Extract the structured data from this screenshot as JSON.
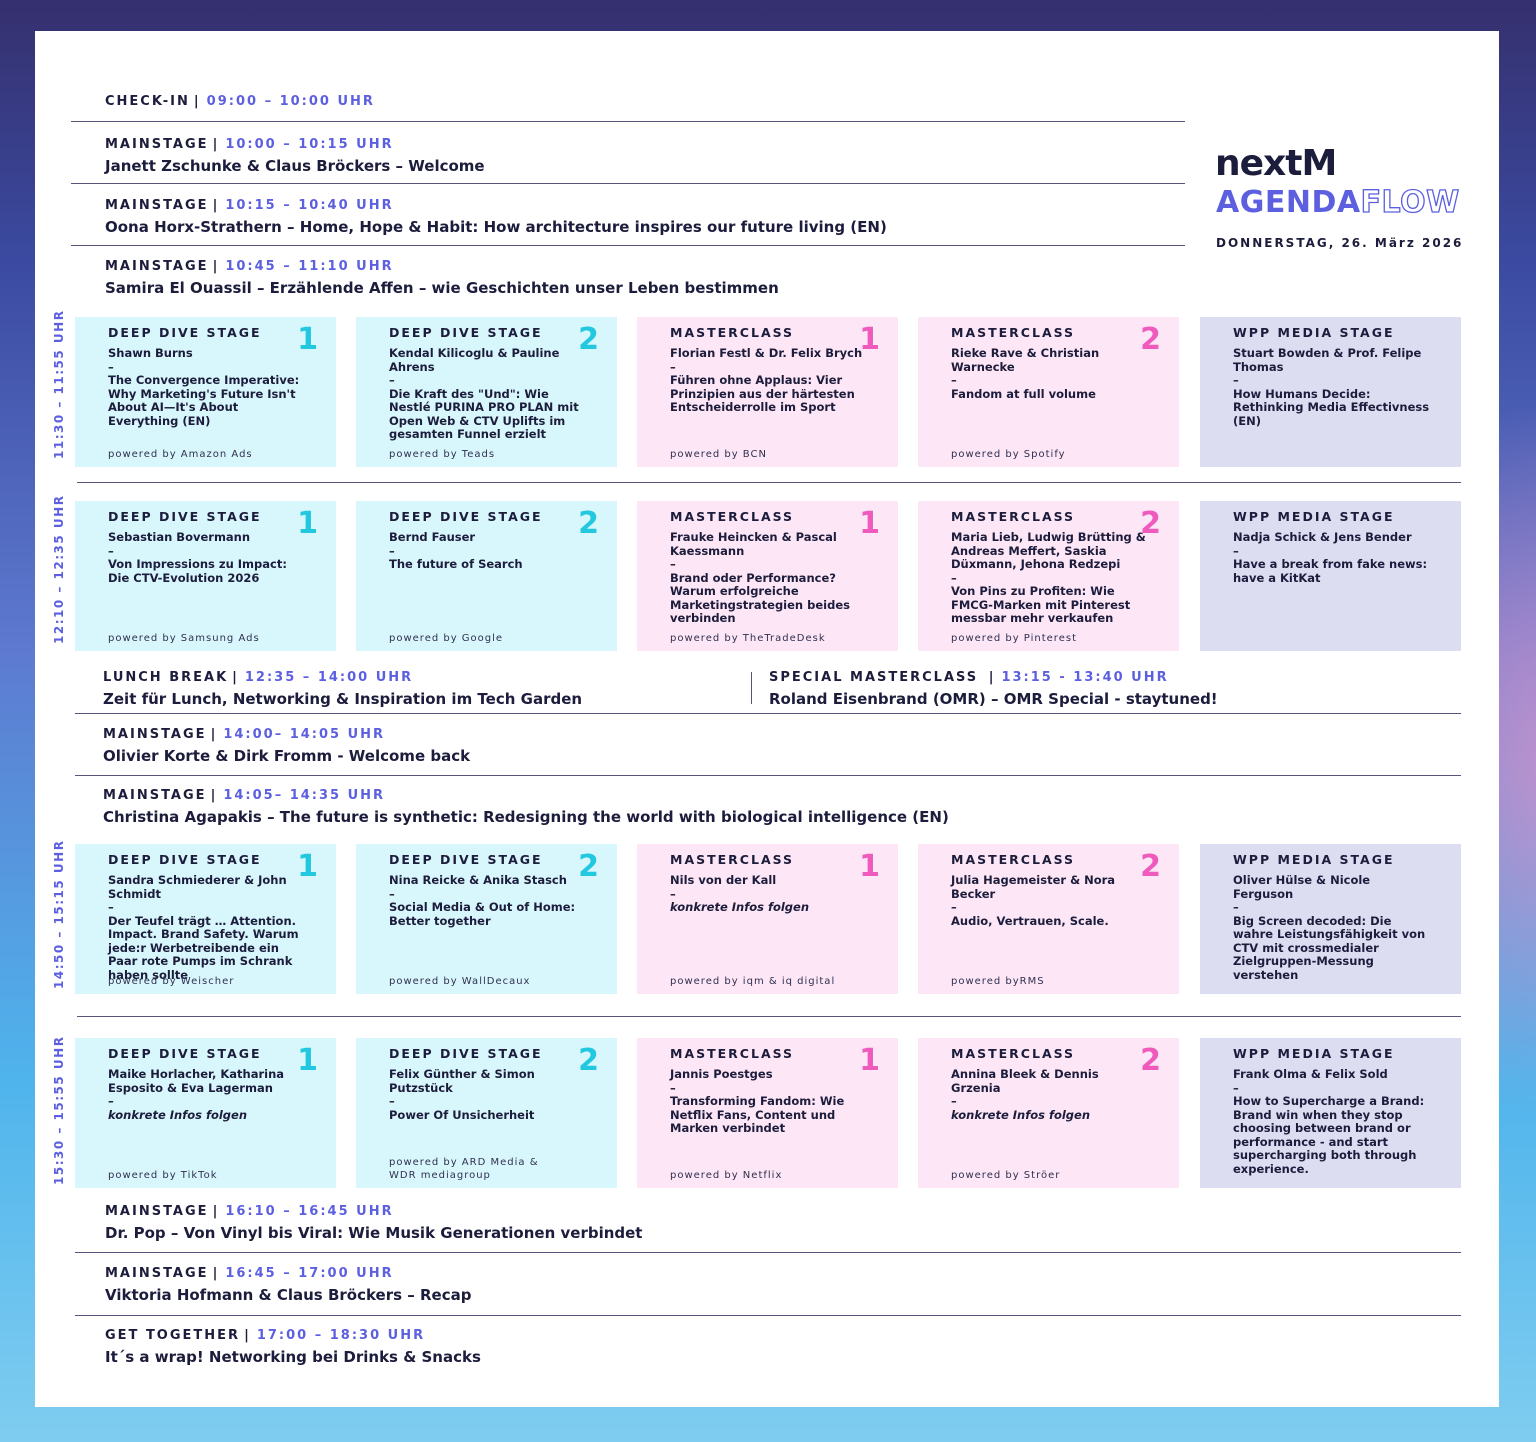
{
  "logo": {
    "brand": "nextM",
    "agenda": "AGENDA",
    "flow": "FLOW",
    "date": "DONNERSTAG, 26. März 2026"
  },
  "rows": [
    {
      "title": "CHECK-IN",
      "time": "09:00 – 10:00 UHR",
      "desc": ""
    },
    {
      "title": "MAINSTAGE",
      "time": "10:00 – 10:15 UHR",
      "desc": "Janett Zschunke & Claus Bröckers – Welcome"
    },
    {
      "title": "MAINSTAGE",
      "time": "10:15 – 10:40 UHR",
      "desc": "Oona Horx-Strathern – Home, Hope & Habit: How architecture inspires our future living (EN)"
    },
    {
      "title": "MAINSTAGE",
      "time": "10:45 – 11:10 UHR",
      "desc": "Samira El Ouassil – Erzählende Affen – wie Geschichten unser Leben bestimmen"
    },
    {
      "title": "LUNCH BREAK",
      "time": "12:35 – 14:00 UHR",
      "desc": "Zeit für Lunch, Networking & Inspiration im Tech Garden"
    },
    {
      "title": "SPECIAL MASTERCLASS ",
      "time": "13:15 - 13:40 UHR",
      "desc": "Roland Eisenbrand (OMR) – OMR Special - staytuned!"
    },
    {
      "title": "MAINSTAGE",
      "time": "14:00– 14:05 UHR",
      "desc": "Olivier Korte & Dirk Fromm - Welcome back"
    },
    {
      "title": "MAINSTAGE",
      "time": "14:05– 14:35 UHR",
      "desc": "Christina Agapakis – The future is synthetic: Redesigning the world with biological intelligence (EN)"
    },
    {
      "title": "MAINSTAGE",
      "time": "16:10 – 16:45 UHR",
      "desc": "Dr. Pop – Von Vinyl bis Viral: Wie Musik Generationen verbindet"
    },
    {
      "title": "MAINSTAGE",
      "time": "16:45 – 17:00 UHR",
      "desc": "Viktoria Hofmann & Claus Bröckers – Recap"
    },
    {
      "title": "GET TOGETHER",
      "time": "17:00 – 18:30 UHR",
      "desc": "It´s a wrap! Networking bei Drinks & Snacks"
    }
  ],
  "blocks": [
    {
      "time": "11:30 – 11:55 UHR",
      "cards": [
        {
          "stage": "DEEP DIVE STAGE",
          "num": "1",
          "speakers": "Shawn Burns",
          "talk": "The Convergence Imperative: Why Marketing's Future Isn't About AI—It's About Everything (EN)",
          "powered": "powered by Amazon Ads",
          "tbd": false
        },
        {
          "stage": "DEEP DIVE STAGE",
          "num": "2",
          "speakers": "Kendal Kilicoglu & Pauline Ahrens",
          "talk": "Die Kraft des \"Und\": Wie Nestlé PURINA PRO PLAN mit Open Web & CTV Uplifts im gesamten Funnel erzielt",
          "powered": "powered by Teads",
          "tbd": false
        },
        {
          "stage": "MASTERCLASS",
          "num": "1",
          "speakers": "Florian Festl & Dr. Felix Brych",
          "talk": "Führen ohne Applaus: Vier Prinzipien aus der härtesten Entscheiderrolle im Sport",
          "powered": "powered by BCN",
          "tbd": false
        },
        {
          "stage": "MASTERCLASS",
          "num": "2",
          "speakers": "Rieke Rave & Christian Warnecke",
          "talk": "Fandom at full volume",
          "powered": "powered by Spotify",
          "tbd": false
        },
        {
          "stage": "WPP MEDIA STAGE",
          "num": "",
          "speakers": "Stuart Bowden & Prof. Felipe Thomas",
          "talk": "How Humans Decide: Rethinking Media Effectivness (EN)",
          "powered": "",
          "tbd": false
        }
      ]
    },
    {
      "time": "12:10 – 12:35 UHR",
      "cards": [
        {
          "stage": "DEEP DIVE STAGE",
          "num": "1",
          "speakers": "Sebastian Bovermann",
          "talk": "Von Impressions zu Impact: Die CTV-Evolution 2026",
          "powered": "powered by Samsung Ads",
          "tbd": false
        },
        {
          "stage": "DEEP DIVE STAGE",
          "num": "2",
          "speakers": "Bernd Fauser",
          "talk": "The future of Search",
          "powered": "powered by Google",
          "tbd": false
        },
        {
          "stage": "MASTERCLASS",
          "num": "1",
          "speakers": "Frauke Heincken & Pascal Kaessmann",
          "talk": "Brand oder Performance? Warum erfolgreiche Marketingstrategien beides verbinden",
          "powered": "powered by TheTradeDesk",
          "tbd": false
        },
        {
          "stage": "MASTERCLASS",
          "num": "2",
          "speakers": "Maria Lieb, Ludwig Brütting & Andreas Meffert, Saskia Düxmann, Jehona Redzepi",
          "talk": "Von Pins zu Profiten: Wie FMCG-Marken mit Pinterest messbar mehr verkaufen",
          "powered": "powered by Pinterest",
          "tbd": false
        },
        {
          "stage": "WPP MEDIA STAGE",
          "num": "",
          "speakers": "Nadja Schick & Jens Bender",
          "talk": "Have a break from fake news: have a KitKat",
          "powered": "",
          "tbd": false
        }
      ]
    },
    {
      "time": "14:50 – 15:15 UHR",
      "cards": [
        {
          "stage": "DEEP DIVE STAGE",
          "num": "1",
          "speakers": "Sandra Schmiederer & John Schmidt",
          "talk": "Der Teufel trägt … Attention. Impact. Brand Safety. Warum jede:r Werbetreibende ein Paar rote Pumps im Schrank haben sollte",
          "powered": "powered by Weischer",
          "tbd": false
        },
        {
          "stage": "DEEP DIVE STAGE",
          "num": "2",
          "speakers": "Nina Reicke & Anika Stasch",
          "talk": "Social Media & Out of Home: Better together",
          "powered": "powered by WallDecaux",
          "tbd": false
        },
        {
          "stage": "MASTERCLASS",
          "num": "1",
          "speakers": "Nils von der Kall",
          "talk": "konkrete Infos folgen",
          "powered": "powered by iqm & iq digital",
          "tbd": true
        },
        {
          "stage": "MASTERCLASS",
          "num": "2",
          "speakers": "Julia Hagemeister & Nora Becker",
          "talk": "Audio, Vertrauen, Scale.",
          "powered": "powered byRMS",
          "tbd": false
        },
        {
          "stage": "WPP MEDIA STAGE",
          "num": "",
          "speakers": "Oliver Hülse & Nicole Ferguson",
          "talk": "Big Screen decoded: Die wahre Leistungsfähigkeit von CTV mit crossmedialer Zielgruppen-Messung verstehen",
          "powered": "",
          "tbd": false
        }
      ]
    },
    {
      "time": "15:30 – 15:55 UHR",
      "cards": [
        {
          "stage": "DEEP DIVE STAGE",
          "num": "1",
          "speakers": "Maike Horlacher, Katharina Esposito & Eva Lagerman",
          "talk": "konkrete Infos folgen",
          "powered": "powered by TikTok",
          "tbd": true
        },
        {
          "stage": "DEEP DIVE STAGE",
          "num": "2",
          "speakers": "Felix Günther & Simon Putzstück",
          "talk": "Power Of Unsicherheit",
          "powered": "powered by ARD Media & WDR mediagroup",
          "tbd": false
        },
        {
          "stage": "MASTERCLASS",
          "num": "1",
          "speakers": "Jannis Poestges",
          "talk": "Transforming Fandom: Wie Netflix Fans, Content und Marken verbindet",
          "powered": "powered by Netflix",
          "tbd": false
        },
        {
          "stage": "MASTERCLASS",
          "num": "2",
          "speakers": "Annina Bleek & Dennis Grzenia",
          "talk": "konkrete Infos folgen",
          "powered": "powered by Ströer",
          "tbd": true
        },
        {
          "stage": "WPP MEDIA STAGE",
          "num": "",
          "speakers": "Frank Olma & Felix Sold",
          "talk": "How to Supercharge a Brand: Brand win when they stop choosing between brand or performance - and start supercharging both through experience.",
          "powered": "",
          "tbd": false
        }
      ]
    }
  ],
  "dash": "–",
  "colors": {
    "accent": "#5b5fe0",
    "deep": "#d8f7fc",
    "master": "#fde6f5",
    "wpp": "#ddddf2",
    "cyan": "#22c8e0",
    "pink": "#ee5bbd",
    "text": "#1c1c3c"
  }
}
